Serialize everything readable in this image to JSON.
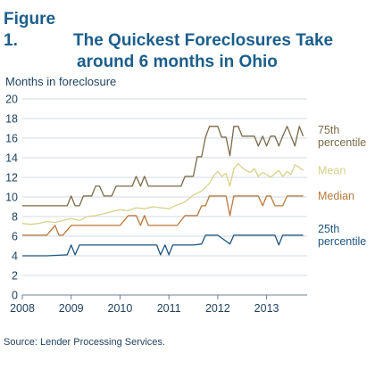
{
  "figure": {
    "label": "Figure 1.",
    "title_line1": "The Quickest Foreclosures Take",
    "title_line2": "around 6 months in Ohio"
  },
  "source": "Source: Lender Processing Services.",
  "colors": {
    "title": "#1b5e8c",
    "p75": "#7a6a48",
    "mean": "#d7d28a",
    "median": "#b9793a",
    "p25": "#1e5680",
    "axis_text": "#1d3f5e",
    "grid": "#d3dbe4"
  },
  "chart_data": {
    "type": "line",
    "title": "The Quickest Foreclosures Take around 6 months in Ohio",
    "ylabel": "Months in foreclosure",
    "xlabel": "",
    "xlim": [
      2008,
      2013.83
    ],
    "ylim": [
      0,
      20
    ],
    "x_ticks": [
      2008,
      2009,
      2010,
      2011,
      2012,
      2013
    ],
    "y_ticks": [
      0,
      2,
      4,
      6,
      8,
      10,
      12,
      14,
      16,
      18,
      20
    ],
    "grid": true,
    "legend": "labels at right end of each series",
    "series": [
      {
        "key": "p75",
        "name": "75th percentile",
        "label_lines": [
          "75th",
          "percentile"
        ],
        "x": [
          2008,
          2008.5,
          2008.92,
          2009.0,
          2009.08,
          2009.17,
          2009.25,
          2009.42,
          2009.5,
          2009.58,
          2009.67,
          2009.75,
          2009.83,
          2009.92,
          2010.0,
          2010.08,
          2010.17,
          2010.25,
          2010.33,
          2010.42,
          2010.5,
          2010.58,
          2010.67,
          2010.75,
          2010.83,
          2010.92,
          2011.0,
          2011.08,
          2011.17,
          2011.25,
          2011.33,
          2011.42,
          2011.5,
          2011.58,
          2011.67,
          2011.75,
          2011.83,
          2011.92,
          2012.0,
          2012.08,
          2012.17,
          2012.25,
          2012.33,
          2012.42,
          2012.5,
          2012.58,
          2012.67,
          2012.75,
          2012.83,
          2012.92,
          2013.0,
          2013.08,
          2013.17,
          2013.25,
          2013.33,
          2013.42,
          2013.5,
          2013.58,
          2013.67,
          2013.75
        ],
        "values": [
          9.1,
          9.1,
          9.1,
          10.1,
          9.1,
          9.1,
          10.1,
          10.1,
          11.1,
          11.1,
          10.1,
          10.1,
          10.1,
          11.1,
          11.1,
          11.1,
          11.1,
          11.1,
          12.1,
          11.1,
          12.1,
          11.1,
          11.1,
          11.1,
          11.1,
          11.1,
          11.1,
          11.1,
          11.1,
          11.1,
          12.1,
          12.1,
          12.1,
          14.1,
          14.1,
          16.1,
          17.2,
          17.2,
          17.2,
          16.1,
          16.1,
          14.2,
          17.2,
          17.2,
          16.2,
          16.2,
          16.2,
          16.2,
          15.2,
          16.2,
          15.2,
          16.2,
          16.2,
          15.2,
          16.2,
          17.2,
          16.2,
          15.2,
          17.2,
          16.2
        ]
      },
      {
        "key": "mean",
        "name": "Mean",
        "label_lines": [
          "Mean"
        ],
        "x": [
          2008,
          2008.17,
          2008.33,
          2008.5,
          2008.67,
          2008.83,
          2009.0,
          2009.17,
          2009.33,
          2009.5,
          2009.67,
          2009.83,
          2010.0,
          2010.17,
          2010.33,
          2010.5,
          2010.67,
          2010.83,
          2011.0,
          2011.17,
          2011.33,
          2011.5,
          2011.67,
          2011.83,
          2011.92,
          2012.0,
          2012.08,
          2012.17,
          2012.25,
          2012.33,
          2012.42,
          2012.5,
          2012.58,
          2012.67,
          2012.75,
          2012.83,
          2012.92,
          2013.0,
          2013.08,
          2013.17,
          2013.25,
          2013.33,
          2013.42,
          2013.5,
          2013.58,
          2013.67,
          2013.75
        ],
        "values": [
          7.3,
          7.2,
          7.3,
          7.5,
          7.4,
          7.6,
          7.8,
          7.6,
          8.0,
          8.1,
          8.3,
          8.5,
          8.7,
          8.6,
          8.9,
          8.8,
          9.0,
          8.9,
          8.8,
          9.2,
          9.5,
          10.2,
          10.6,
          11.4,
          12.2,
          12.6,
          12.1,
          12.4,
          11.1,
          12.9,
          13.4,
          13.0,
          12.7,
          12.5,
          12.9,
          12.1,
          12.5,
          12.3,
          12.0,
          12.4,
          12.7,
          12.1,
          12.6,
          12.3,
          13.3,
          13.0,
          12.7
        ]
      },
      {
        "key": "median",
        "name": "Median",
        "label_lines": [
          "Median"
        ],
        "x": [
          2008,
          2008.5,
          2008.67,
          2008.75,
          2008.83,
          2009.0,
          2009.08,
          2009.25,
          2009.5,
          2009.75,
          2009.92,
          2010.0,
          2010.17,
          2010.33,
          2010.42,
          2010.5,
          2010.58,
          2010.67,
          2010.83,
          2011.0,
          2011.17,
          2011.33,
          2011.42,
          2011.58,
          2011.67,
          2011.75,
          2011.83,
          2011.92,
          2012.0,
          2012.17,
          2012.25,
          2012.33,
          2012.5,
          2012.67,
          2012.83,
          2012.92,
          2013.0,
          2013.08,
          2013.17,
          2013.33,
          2013.42,
          2013.5,
          2013.75
        ],
        "values": [
          6.1,
          6.1,
          7.1,
          6.1,
          6.1,
          7.1,
          7.1,
          7.1,
          7.1,
          7.1,
          7.1,
          7.1,
          8.1,
          8.1,
          7.1,
          8.1,
          7.1,
          7.1,
          7.1,
          7.1,
          7.1,
          8.1,
          8.1,
          8.1,
          9.1,
          9.1,
          10.1,
          10.1,
          10.1,
          10.1,
          8.1,
          10.1,
          10.1,
          10.1,
          10.1,
          9.1,
          10.1,
          10.1,
          9.1,
          9.1,
          10.1,
          10.1,
          10.1
        ]
      },
      {
        "key": "p25",
        "name": "25th percentile",
        "label_lines": [
          "25th",
          "percentile"
        ],
        "x": [
          2008,
          2008.5,
          2008.92,
          2009.0,
          2009.08,
          2009.17,
          2009.5,
          2010.0,
          2010.5,
          2010.75,
          2010.83,
          2010.92,
          2011.0,
          2011.08,
          2011.17,
          2011.33,
          2011.5,
          2011.67,
          2011.75,
          2012.0,
          2012.25,
          2012.33,
          2012.5,
          2012.75,
          2013.0,
          2013.17,
          2013.25,
          2013.33,
          2013.5,
          2013.75
        ],
        "values": [
          4.0,
          4.0,
          4.1,
          5.1,
          4.1,
          5.1,
          5.1,
          5.1,
          5.1,
          5.1,
          4.1,
          5.1,
          4.1,
          5.1,
          5.1,
          5.1,
          5.1,
          5.2,
          6.1,
          6.1,
          5.2,
          6.1,
          6.1,
          6.1,
          6.1,
          6.1,
          5.1,
          6.1,
          6.1,
          6.1
        ]
      }
    ]
  }
}
